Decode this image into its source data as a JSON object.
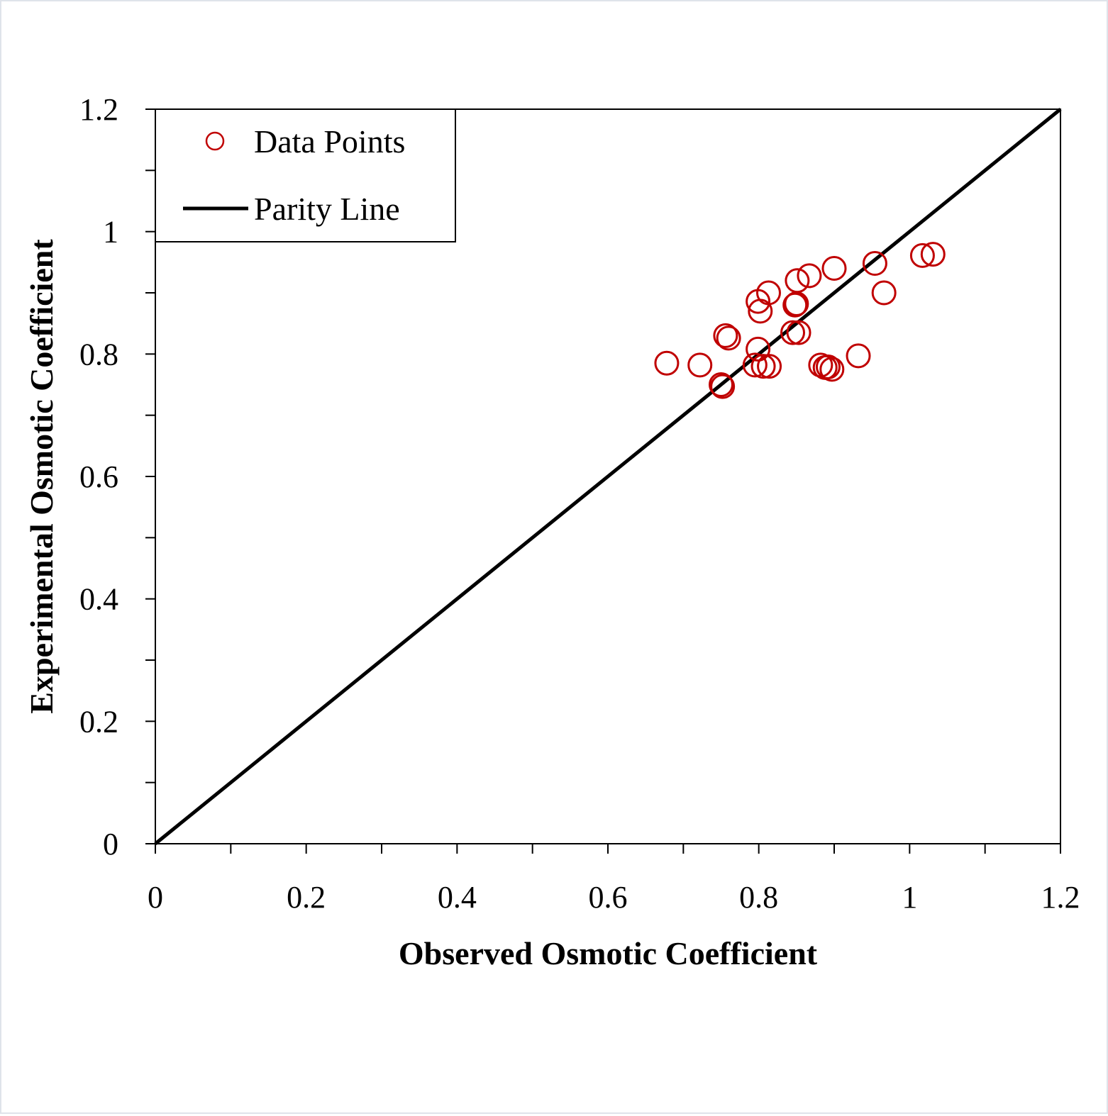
{
  "chart_data": {
    "type": "scatter",
    "xlabel": "Observed Osmotic Coefficient",
    "ylabel": "Experimental Osmotic Coefficient",
    "xlim": [
      0,
      1.2
    ],
    "ylim": [
      0,
      1.2
    ],
    "x_ticks": [
      "0",
      "0.2",
      "0.4",
      "0.6",
      "0.8",
      "1",
      "1.2"
    ],
    "y_ticks": [
      "0",
      "0.2",
      "0.4",
      "0.6",
      "0.8",
      "1",
      "1.2"
    ],
    "grid": false,
    "legend_position": "top-left",
    "series": [
      {
        "name": "Data Points",
        "marker": "open-circle",
        "color": "#c00000",
        "points": [
          [
            0.678,
            0.785
          ],
          [
            0.722,
            0.782
          ],
          [
            0.75,
            0.75
          ],
          [
            0.752,
            0.747
          ],
          [
            0.756,
            0.83
          ],
          [
            0.76,
            0.826
          ],
          [
            0.795,
            0.782
          ],
          [
            0.799,
            0.808
          ],
          [
            0.799,
            0.886
          ],
          [
            0.802,
            0.87
          ],
          [
            0.806,
            0.78
          ],
          [
            0.813,
            0.9
          ],
          [
            0.814,
            0.78
          ],
          [
            0.845,
            0.835
          ],
          [
            0.848,
            0.88
          ],
          [
            0.85,
            0.882
          ],
          [
            0.851,
            0.92
          ],
          [
            0.853,
            0.835
          ],
          [
            0.867,
            0.928
          ],
          [
            0.882,
            0.782
          ],
          [
            0.888,
            0.778
          ],
          [
            0.892,
            0.779
          ],
          [
            0.897,
            0.775
          ],
          [
            0.9,
            0.94
          ],
          [
            0.932,
            0.797
          ],
          [
            0.954,
            0.948
          ],
          [
            0.966,
            0.9
          ],
          [
            1.017,
            0.961
          ],
          [
            1.031,
            0.963
          ]
        ]
      },
      {
        "name": "Parity Line",
        "marker": "line",
        "color": "#000000",
        "x": [
          0,
          1.2
        ],
        "y": [
          0,
          1.2
        ]
      }
    ]
  }
}
